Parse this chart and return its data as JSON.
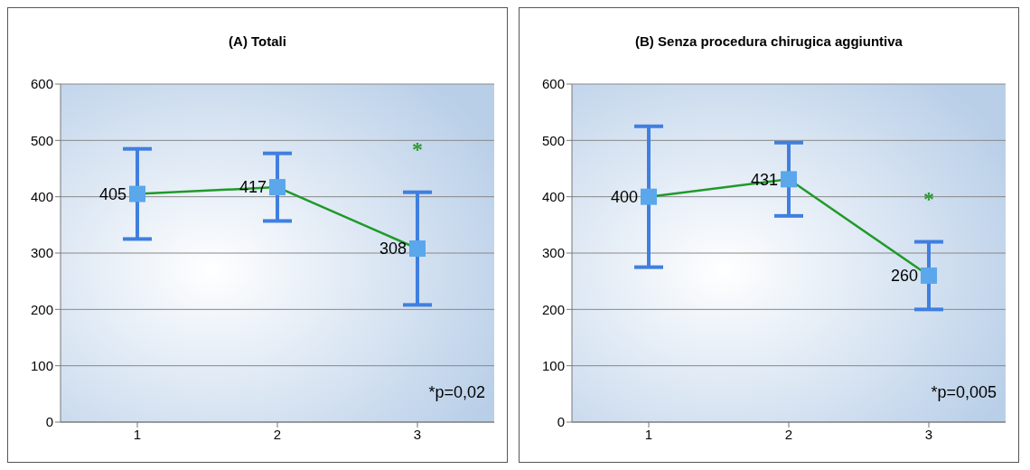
{
  "chart_data": [
    {
      "type": "line",
      "title": "(A) Totali",
      "categories": [
        "1",
        "2",
        "3"
      ],
      "series": [
        {
          "color": "#1f9a2a",
          "values": [
            405,
            417,
            308
          ],
          "errors": [
            80,
            60,
            100
          ]
        }
      ],
      "data_labels": true,
      "marker": "square",
      "ylim": [
        0,
        600
      ],
      "yticks": [
        0,
        100,
        200,
        300,
        400,
        500,
        600
      ],
      "grid": "y",
      "legend": false,
      "annotations": [
        "*",
        "*p=0,02"
      ]
    },
    {
      "type": "line",
      "title": "(B) Senza procedura chirugica aggiuntiva",
      "categories": [
        "1",
        "2",
        "3"
      ],
      "series": [
        {
          "color": "#1f9a2a",
          "values": [
            400,
            431,
            260
          ],
          "errors": [
            125,
            65,
            60
          ]
        }
      ],
      "data_labels": true,
      "marker": "square",
      "ylim": [
        0,
        600
      ],
      "yticks": [
        0,
        100,
        200,
        300,
        400,
        500,
        600
      ],
      "grid": "y",
      "legend": false,
      "annotations": [
        "*",
        "*p=0,005"
      ]
    }
  ]
}
